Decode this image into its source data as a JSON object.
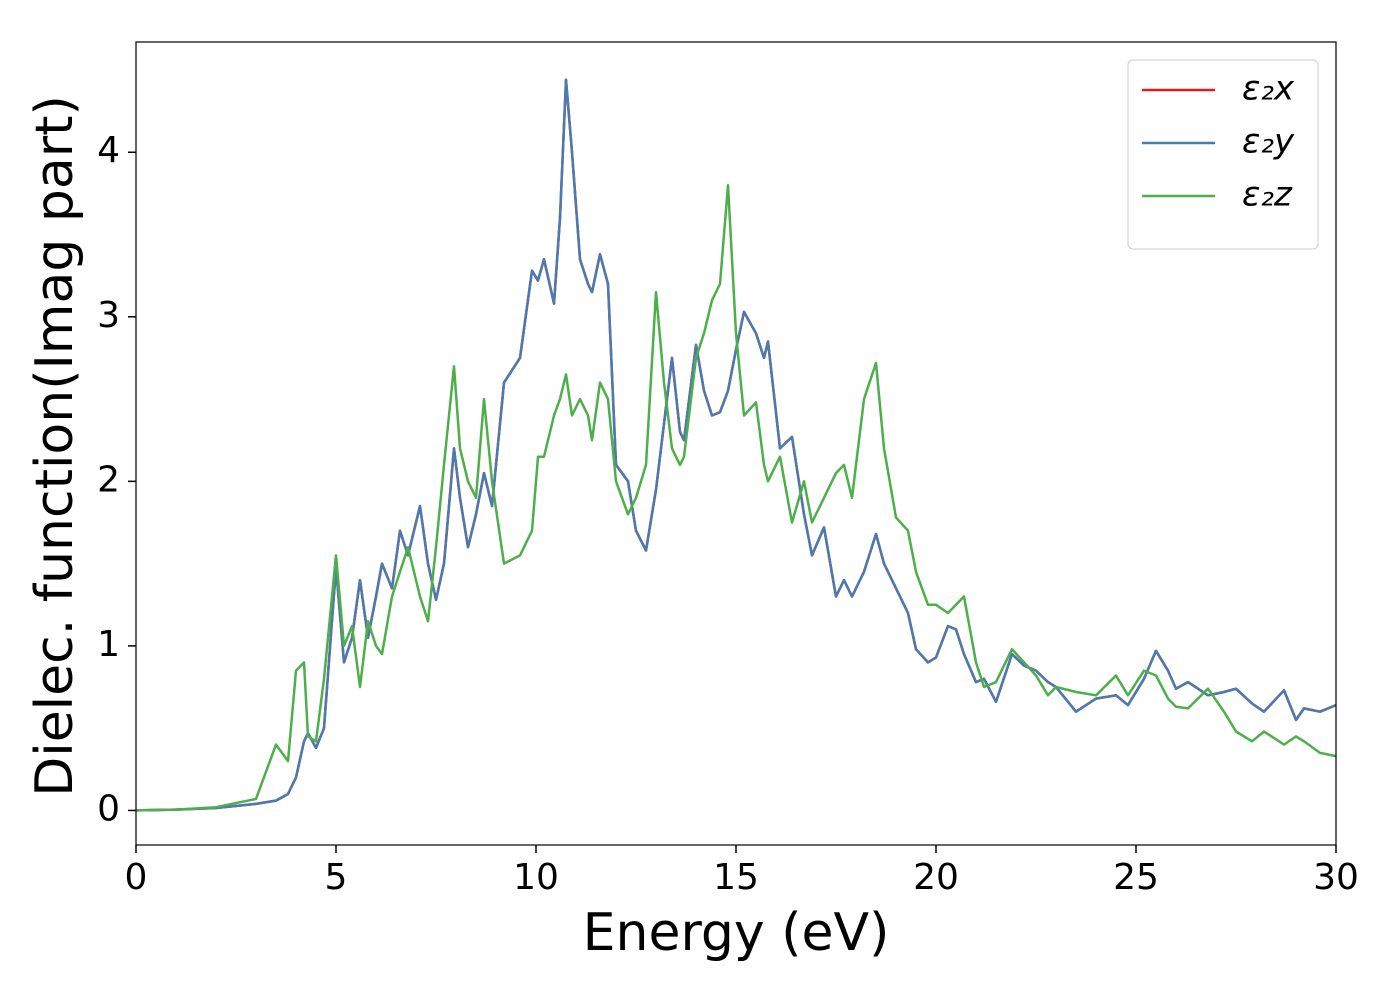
{
  "chart_data": {
    "type": "line",
    "xlabel": "Energy (eV)",
    "ylabel": "Dielec. function(Imag part)",
    "xlim": [
      0,
      30
    ],
    "ylim": [
      -0.21,
      4.67
    ],
    "xticks": [
      0,
      5,
      10,
      15,
      20,
      25,
      30
    ],
    "yticks": [
      0,
      1,
      2,
      3,
      4
    ],
    "grid": false,
    "legend": "upper right",
    "x": [
      0,
      1,
      2,
      3,
      3.5,
      3.8,
      4.0,
      4.2,
      4.3,
      4.5,
      4.7,
      5.0,
      5.2,
      5.4,
      5.6,
      5.8,
      6.0,
      6.15,
      6.4,
      6.6,
      6.8,
      7.1,
      7.3,
      7.5,
      7.7,
      7.95,
      8.1,
      8.3,
      8.5,
      8.7,
      8.9,
      9.2,
      9.6,
      9.9,
      10.05,
      10.2,
      10.45,
      10.6,
      10.75,
      10.9,
      11.1,
      11.3,
      11.4,
      11.6,
      11.8,
      12.0,
      12.3,
      12.5,
      12.75,
      13.0,
      13.2,
      13.4,
      13.6,
      13.7,
      14.0,
      14.2,
      14.4,
      14.6,
      14.8,
      15.0,
      15.2,
      15.5,
      15.7,
      15.8,
      16.1,
      16.4,
      16.7,
      16.9,
      17.2,
      17.5,
      17.7,
      17.9,
      18.2,
      18.5,
      18.7,
      19.0,
      19.3,
      19.5,
      19.8,
      20.0,
      20.3,
      20.5,
      20.7,
      21.0,
      21.2,
      21.5,
      21.9,
      22.2,
      22.5,
      22.8,
      23.0,
      23.5,
      24.0,
      24.5,
      24.8,
      25.2,
      25.5,
      25.8,
      26.0,
      26.3,
      26.8,
      27.2,
      27.5,
      27.9,
      28.2,
      28.7,
      29.0,
      29.2,
      29.6,
      30.0
    ],
    "series": [
      {
        "name": "ε₂x",
        "color": "#e41a1c",
        "values": [
          0,
          0.005,
          0.015,
          0.04,
          0.06,
          0.1,
          0.2,
          0.42,
          0.47,
          0.38,
          0.5,
          1.48,
          0.9,
          1.05,
          1.4,
          1.05,
          1.3,
          1.5,
          1.35,
          1.7,
          1.55,
          1.85,
          1.5,
          1.28,
          1.5,
          2.2,
          1.9,
          1.6,
          1.8,
          2.05,
          1.85,
          2.6,
          2.75,
          3.28,
          3.22,
          3.35,
          3.08,
          3.6,
          4.44,
          4.0,
          3.35,
          3.2,
          3.15,
          3.38,
          3.2,
          2.1,
          2.0,
          1.7,
          1.58,
          1.95,
          2.35,
          2.75,
          2.3,
          2.25,
          2.83,
          2.55,
          2.4,
          2.42,
          2.55,
          2.8,
          3.03,
          2.9,
          2.75,
          2.85,
          2.2,
          2.27,
          1.8,
          1.55,
          1.72,
          1.3,
          1.4,
          1.3,
          1.45,
          1.68,
          1.5,
          1.35,
          1.2,
          0.98,
          0.9,
          0.93,
          1.12,
          1.1,
          0.95,
          0.78,
          0.8,
          0.66,
          0.95,
          0.88,
          0.85,
          0.78,
          0.75,
          0.6,
          0.68,
          0.7,
          0.64,
          0.8,
          0.97,
          0.85,
          0.74,
          0.78,
          0.7,
          0.72,
          0.74,
          0.65,
          0.6,
          0.73,
          0.55,
          0.62,
          0.6,
          0.64
        ]
      },
      {
        "name": "ε₂y",
        "color": "#4a7bb0",
        "values": [
          0,
          0.005,
          0.015,
          0.04,
          0.06,
          0.1,
          0.2,
          0.42,
          0.47,
          0.38,
          0.5,
          1.48,
          0.9,
          1.05,
          1.4,
          1.05,
          1.3,
          1.5,
          1.35,
          1.7,
          1.55,
          1.85,
          1.5,
          1.28,
          1.5,
          2.2,
          1.9,
          1.6,
          1.8,
          2.05,
          1.85,
          2.6,
          2.75,
          3.28,
          3.22,
          3.35,
          3.08,
          3.6,
          4.44,
          4.0,
          3.35,
          3.2,
          3.15,
          3.38,
          3.2,
          2.1,
          2.0,
          1.7,
          1.58,
          1.95,
          2.35,
          2.75,
          2.3,
          2.25,
          2.83,
          2.55,
          2.4,
          2.42,
          2.55,
          2.8,
          3.03,
          2.9,
          2.75,
          2.85,
          2.2,
          2.27,
          1.8,
          1.55,
          1.72,
          1.3,
          1.4,
          1.3,
          1.45,
          1.68,
          1.5,
          1.35,
          1.2,
          0.98,
          0.9,
          0.93,
          1.12,
          1.1,
          0.95,
          0.78,
          0.8,
          0.66,
          0.95,
          0.88,
          0.85,
          0.78,
          0.75,
          0.6,
          0.68,
          0.7,
          0.64,
          0.8,
          0.97,
          0.85,
          0.74,
          0.78,
          0.7,
          0.72,
          0.74,
          0.65,
          0.6,
          0.73,
          0.55,
          0.62,
          0.6,
          0.64
        ]
      },
      {
        "name": "ε₂z",
        "color": "#4daf4a",
        "values": [
          0,
          0.005,
          0.02,
          0.07,
          0.4,
          0.3,
          0.85,
          0.9,
          0.45,
          0.42,
          0.8,
          1.55,
          1.0,
          1.12,
          0.75,
          1.15,
          1.0,
          0.95,
          1.3,
          1.45,
          1.6,
          1.3,
          1.15,
          1.6,
          2.1,
          2.7,
          2.2,
          2.0,
          1.9,
          2.5,
          2.0,
          1.5,
          1.55,
          1.7,
          2.15,
          2.15,
          2.4,
          2.5,
          2.65,
          2.4,
          2.5,
          2.4,
          2.25,
          2.6,
          2.5,
          2.0,
          1.8,
          1.9,
          2.1,
          3.15,
          2.6,
          2.2,
          2.1,
          2.15,
          2.75,
          2.9,
          3.1,
          3.2,
          3.8,
          2.9,
          2.4,
          2.48,
          2.1,
          2.0,
          2.15,
          1.75,
          2.0,
          1.75,
          1.9,
          2.05,
          2.1,
          1.9,
          2.5,
          2.72,
          2.2,
          1.78,
          1.7,
          1.45,
          1.25,
          1.25,
          1.2,
          1.25,
          1.3,
          0.9,
          0.75,
          0.78,
          0.98,
          0.9,
          0.82,
          0.7,
          0.75,
          0.72,
          0.7,
          0.82,
          0.7,
          0.85,
          0.82,
          0.68,
          0.63,
          0.62,
          0.74,
          0.6,
          0.48,
          0.42,
          0.48,
          0.4,
          0.45,
          0.42,
          0.35,
          0.33
        ]
      }
    ]
  }
}
